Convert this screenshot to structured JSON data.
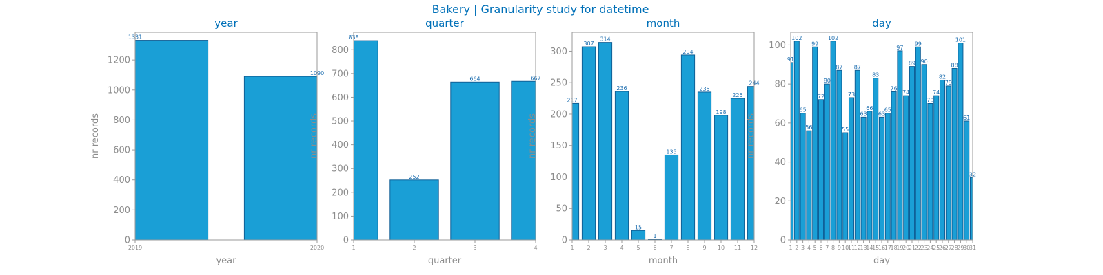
{
  "figure": {
    "suptitle": "Bakery | Granularity study for datetime",
    "bar_color": "#1a9fd6",
    "edge_color": "#0f5f96",
    "title_color": "#0070b8",
    "text_color": "#8c8c8c"
  },
  "chart_data": [
    {
      "type": "bar",
      "title": "year",
      "xlabel": "year",
      "ylabel": "nr records",
      "categories": [
        2019,
        2020
      ],
      "values": [
        1331,
        1090
      ],
      "xlim": [
        2019,
        2020
      ],
      "ylim": [
        0,
        1384
      ],
      "yticks": [
        0,
        200,
        400,
        600,
        800,
        1000,
        1200
      ],
      "xticks": [
        2019,
        2020
      ],
      "grid": false
    },
    {
      "type": "bar",
      "title": "quarter",
      "xlabel": "quarter",
      "ylabel": "nr records",
      "categories": [
        1,
        2,
        3,
        4
      ],
      "values": [
        838,
        252,
        664,
        667
      ],
      "xlim": [
        1,
        4
      ],
      "ylim": [
        0,
        873
      ],
      "yticks": [
        0,
        100,
        200,
        300,
        400,
        500,
        600,
        700,
        800
      ],
      "xticks": [
        1,
        2,
        3,
        4
      ],
      "grid": false
    },
    {
      "type": "bar",
      "title": "month",
      "xlabel": "month",
      "ylabel": "nr records",
      "categories": [
        1,
        2,
        3,
        4,
        5,
        6,
        7,
        8,
        9,
        10,
        11,
        12
      ],
      "values": [
        217,
        307,
        314,
        236,
        15,
        1,
        135,
        294,
        235,
        198,
        225,
        244
      ],
      "xlim": [
        1,
        12
      ],
      "ylim": [
        0,
        330
      ],
      "yticks": [
        0,
        50,
        100,
        150,
        200,
        250,
        300
      ],
      "xticks": [
        1,
        2,
        3,
        4,
        5,
        6,
        7,
        8,
        9,
        10,
        11,
        12
      ],
      "grid": false
    },
    {
      "type": "bar",
      "title": "day",
      "xlabel": "day",
      "ylabel": "nr records",
      "categories": [
        1,
        2,
        3,
        4,
        5,
        6,
        7,
        8,
        9,
        10,
        11,
        12,
        13,
        14,
        15,
        16,
        17,
        18,
        19,
        20,
        21,
        22,
        23,
        24,
        25,
        26,
        27,
        28,
        29,
        30,
        31
      ],
      "values": [
        91,
        102,
        65,
        56,
        99,
        72,
        80,
        102,
        87,
        55,
        73,
        87,
        63,
        66,
        83,
        63,
        65,
        76,
        97,
        74,
        89,
        99,
        90,
        70,
        74,
        82,
        79,
        88,
        101,
        61,
        32
      ],
      "xlim": [
        1,
        31
      ],
      "ylim": [
        0,
        106.5
      ],
      "yticks": [
        0,
        20,
        40,
        60,
        80,
        100
      ],
      "xticks": [
        1,
        2,
        3,
        4,
        5,
        6,
        7,
        8,
        9,
        10,
        11,
        12,
        13,
        14,
        15,
        16,
        17,
        18,
        19,
        20,
        21,
        22,
        23,
        24,
        25,
        26,
        27,
        28,
        29,
        30,
        31
      ],
      "grid": false
    }
  ]
}
